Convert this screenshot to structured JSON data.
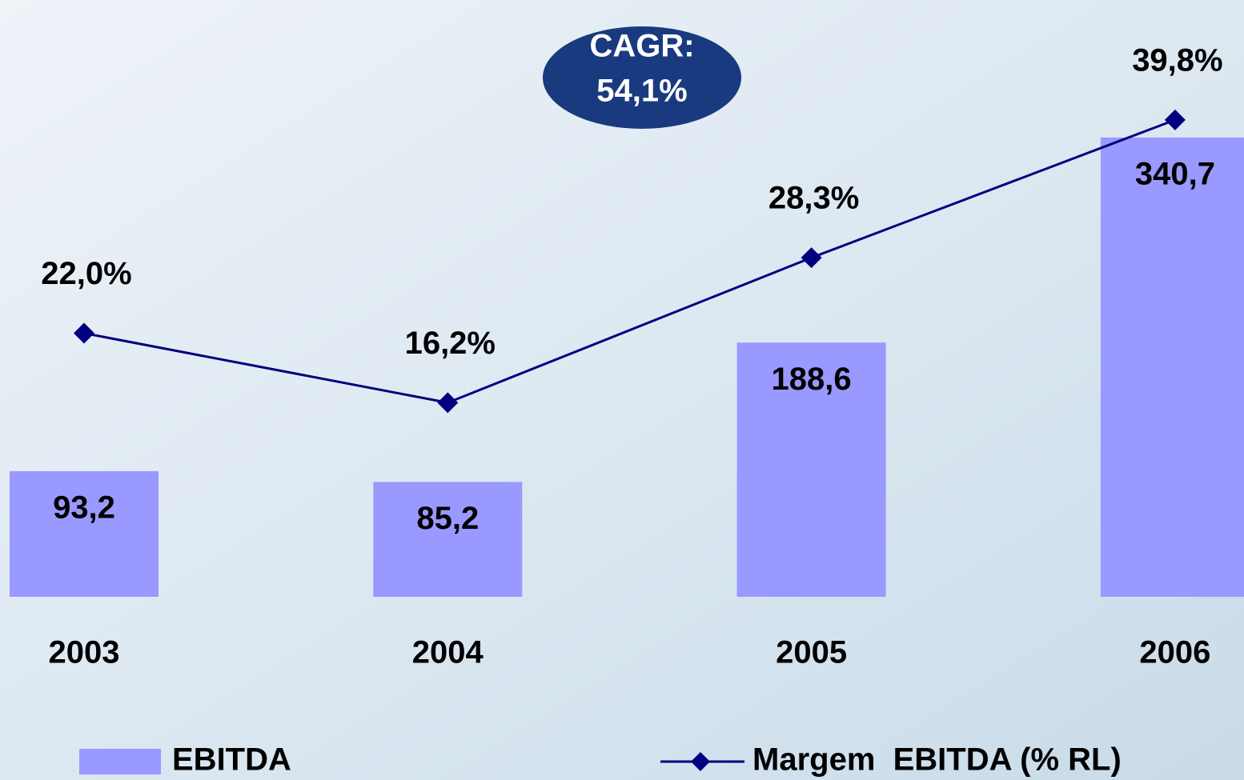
{
  "chart_data": {
    "type": "bar-line",
    "categories": [
      "2003",
      "2004",
      "2005",
      "2006"
    ],
    "series": [
      {
        "name": "EBITDA",
        "type": "bar",
        "color": "#9999ff",
        "values": [
          93.2,
          85.2,
          188.6,
          340.7
        ],
        "value_labels": [
          "93,2",
          "85,2",
          "188,6",
          "340,7"
        ]
      },
      {
        "name": "Margem  EBITDA (% RL)",
        "type": "line",
        "axis": "y2",
        "color": "#000080",
        "values": [
          22.0,
          16.2,
          28.3,
          39.8
        ],
        "value_labels": [
          "22,0%",
          "16,2%",
          "28,3%",
          "39,8%"
        ]
      }
    ],
    "ylim": [
      0,
      400
    ],
    "y2lim": [
      0,
      45
    ],
    "annotation": [
      "CAGR:",
      "54,1%"
    ],
    "annotation_color": "#1a3a80",
    "legend": "bottom"
  }
}
